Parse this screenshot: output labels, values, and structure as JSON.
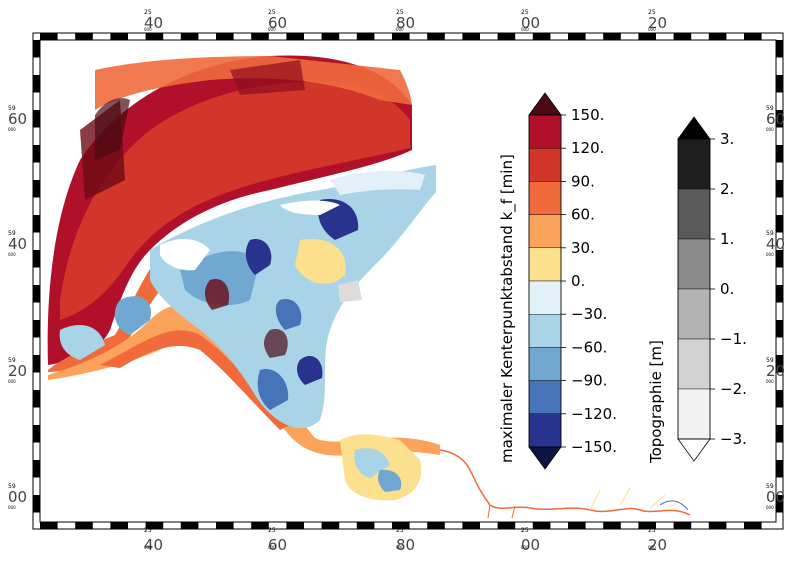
{
  "map": {
    "lon_labels": [
      {
        "minor": "25",
        "major": "40"
      },
      {
        "minor": "25",
        "major": "60"
      },
      {
        "minor": "25",
        "major": "80"
      },
      {
        "minor": "25",
        "major": "00"
      },
      {
        "minor": "25",
        "major": "20"
      }
    ],
    "lat_labels": [
      {
        "minor": "59",
        "major": "60"
      },
      {
        "minor": "59",
        "major": "40"
      },
      {
        "minor": "59",
        "major": "20"
      },
      {
        "minor": "59",
        "major": "00"
      }
    ],
    "tick_sublabel": "000"
  },
  "colorbar_main": {
    "label": "maximaler Kenterpunktabstand k_f [min]",
    "ticks": [
      "150.",
      "120.",
      "90.",
      "60.",
      "30.",
      "0.",
      "−30.",
      "−60.",
      "−90.",
      "−120.",
      "−150."
    ],
    "colors": [
      "#b0102a",
      "#d2352a",
      "#f06a3c",
      "#fba35a",
      "#fde08e",
      "#e1f1f7",
      "#a9d3e6",
      "#71a8d2",
      "#4774b8",
      "#28338e"
    ],
    "over_color": "#4a0c14",
    "under_color": "#0d1440"
  },
  "colorbar_topo": {
    "label": "Topographie [m]",
    "ticks": [
      "3.",
      "2.",
      "1.",
      "0.",
      "−1.",
      "−2.",
      "−3."
    ],
    "colors": [
      "#1e1e1e",
      "#595959",
      "#8a8a8a",
      "#b3b3b3",
      "#d2d2d2",
      "#f2f2f2"
    ],
    "over_color": "#000000",
    "under_color": "#ffffff"
  }
}
